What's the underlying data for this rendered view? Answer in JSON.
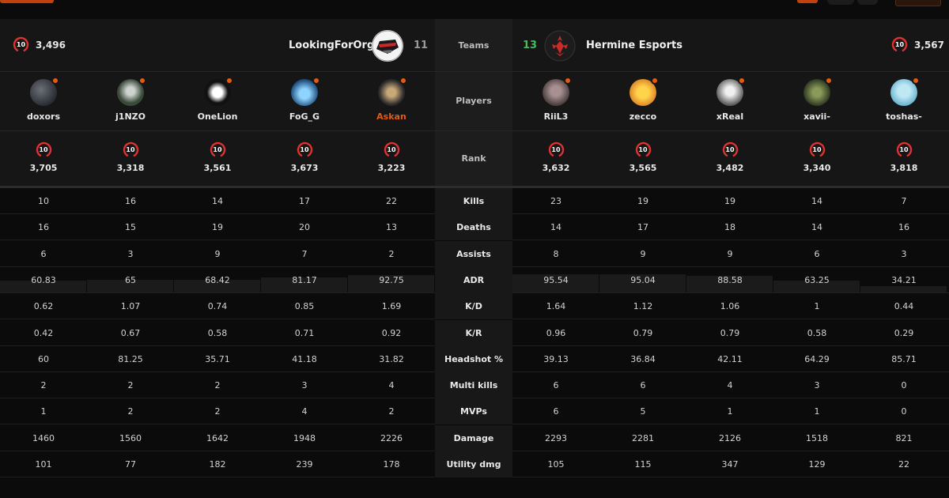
{
  "teams": {
    "left": {
      "elo": "3,496",
      "name": "LookingForOrg",
      "score": "11",
      "rank_level": "10",
      "score_color": "#9a9a9a"
    },
    "right": {
      "elo": "3,567",
      "name": "Hermine Esports",
      "score": "13",
      "rank_level": "10",
      "score_color": "#3fbf5a"
    }
  },
  "labels": {
    "teams": "Teams",
    "players": "Players",
    "rank": "Rank"
  },
  "rank_badge_color": "#e03131",
  "players": [
    {
      "name": "doxors",
      "elo": "3,705",
      "level": "10",
      "highlight": false
    },
    {
      "name": "j1NZO",
      "elo": "3,318",
      "level": "10",
      "highlight": false
    },
    {
      "name": "OneLion",
      "elo": "3,561",
      "level": "10",
      "highlight": false
    },
    {
      "name": "FoG_G",
      "elo": "3,673",
      "level": "10",
      "highlight": false
    },
    {
      "name": "Askan",
      "elo": "3,223",
      "level": "10",
      "highlight": true
    },
    {
      "name": "RiiL3",
      "elo": "3,632",
      "level": "10",
      "highlight": false
    },
    {
      "name": "zecco",
      "elo": "3,565",
      "level": "10",
      "highlight": false
    },
    {
      "name": "xReal",
      "elo": "3,482",
      "level": "10",
      "highlight": false
    },
    {
      "name": "xavii-",
      "elo": "3,340",
      "level": "10",
      "highlight": false
    },
    {
      "name": "toshas-",
      "elo": "3,818",
      "level": "10",
      "highlight": false
    }
  ],
  "highlight_color": "#e8590c",
  "stats": [
    {
      "label": "Kills",
      "values": [
        "10",
        "16",
        "14",
        "17",
        "22",
        "23",
        "19",
        "19",
        "14",
        "7"
      ]
    },
    {
      "label": "Deaths",
      "values": [
        "16",
        "15",
        "19",
        "20",
        "13",
        "14",
        "17",
        "18",
        "14",
        "16"
      ]
    },
    {
      "label": "Assists",
      "values": [
        "6",
        "3",
        "9",
        "7",
        "2",
        "8",
        "9",
        "9",
        "6",
        "3"
      ]
    },
    {
      "label": "ADR",
      "values": [
        "60.83",
        "65",
        "68.42",
        "81.17",
        "92.75",
        "95.54",
        "95.04",
        "88.58",
        "63.25",
        "34.21"
      ]
    },
    {
      "label": "K/D",
      "values": [
        "0.62",
        "1.07",
        "0.74",
        "0.85",
        "1.69",
        "1.64",
        "1.12",
        "1.06",
        "1",
        "0.44"
      ]
    },
    {
      "label": "K/R",
      "values": [
        "0.42",
        "0.67",
        "0.58",
        "0.71",
        "0.92",
        "0.96",
        "0.79",
        "0.79",
        "0.58",
        "0.29"
      ]
    },
    {
      "label": "Headshot %",
      "values": [
        "60",
        "81.25",
        "35.71",
        "41.18",
        "31.82",
        "39.13",
        "36.84",
        "42.11",
        "64.29",
        "85.71"
      ]
    },
    {
      "label": "Multi kills",
      "values": [
        "2",
        "2",
        "2",
        "3",
        "4",
        "6",
        "6",
        "4",
        "3",
        "0"
      ]
    },
    {
      "label": "MVPs",
      "values": [
        "1",
        "2",
        "2",
        "4",
        "2",
        "6",
        "5",
        "1",
        "1",
        "0"
      ]
    },
    {
      "label": "Damage",
      "values": [
        "1460",
        "1560",
        "1642",
        "1948",
        "2226",
        "2293",
        "2281",
        "2126",
        "1518",
        "821"
      ]
    },
    {
      "label": "Utility dmg",
      "values": [
        "101",
        "77",
        "182",
        "239",
        "178",
        "105",
        "115",
        "347",
        "129",
        "22"
      ]
    }
  ]
}
